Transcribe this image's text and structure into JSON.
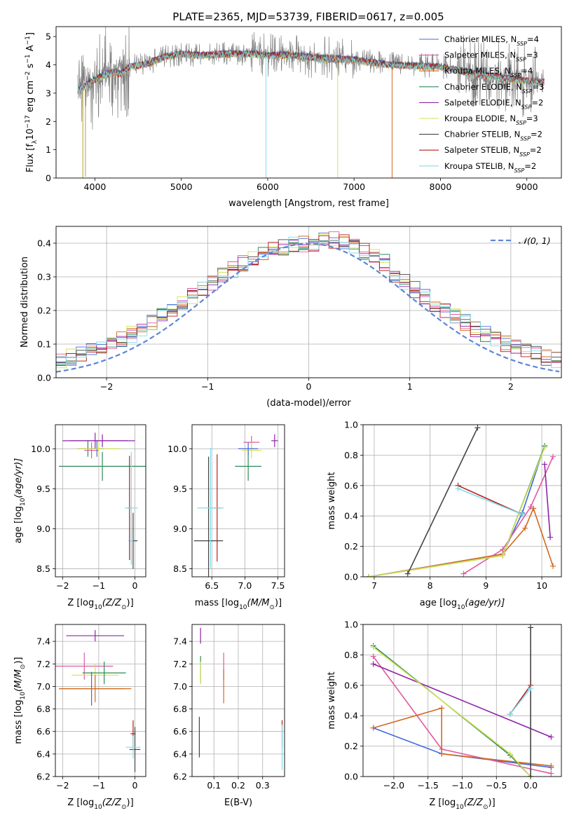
{
  "figure": {
    "title": "PLATE=2365, MJD=53739, FIBERID=0617, z=0.005"
  },
  "models": [
    {
      "name": "Chabrier MILES",
      "label_main": "Chabrier MILES, N",
      "nssp": 4,
      "color": "#4169e1"
    },
    {
      "name": "Salpeter MILES",
      "label_main": "Salpeter MILES, N",
      "nssp": 3,
      "color": "#e05aa0"
    },
    {
      "name": "Kroupa MILES",
      "label_main": "Kroupa MILES, N",
      "nssp": 4,
      "color": "#d2691e"
    },
    {
      "name": "Chabrier ELODIE",
      "label_main": "Chabrier ELODIE, N",
      "nssp": 3,
      "color": "#2e8b57"
    },
    {
      "name": "Salpeter ELODIE",
      "label_main": "Salpeter ELODIE, N",
      "nssp": 2,
      "color": "#8e24aa"
    },
    {
      "name": "Kroupa ELODIE",
      "label_main": "Kroupa ELODIE, N",
      "nssp": 3,
      "color": "#d4e157"
    },
    {
      "name": "Chabrier STELIB",
      "label_main": "Chabrier STELIB, N",
      "nssp": 2,
      "color": "#444444"
    },
    {
      "name": "Salpeter STELIB",
      "label_main": "Salpeter STELIB, N",
      "nssp": 2,
      "color": "#b71c1c"
    },
    {
      "name": "Kroupa STELIB",
      "label_main": "Kroupa STELIB, N",
      "nssp": 2,
      "color": "#80deea"
    }
  ],
  "legend_subscript": "SSP",
  "legend_eq": "=",
  "chart_data": [
    {
      "id": "spectrum",
      "type": "line",
      "xlabel": "wavelength [Angstrom, rest frame]",
      "ylabel": "Flux [f",
      "ylabel_sub": "λ",
      "ylabel_rest": "10",
      "ylabel_exp1": "−17",
      "ylabel_mid": " erg cm",
      "ylabel_exp2": "−2",
      "ylabel_s": " s",
      "ylabel_exp3": "−1",
      "ylabel_end": " A",
      "ylabel_exp4": "−1",
      "ylabel_close": "]",
      "xlim": [
        3550,
        9400
      ],
      "ylim": [
        0,
        5.35
      ],
      "xticks": [
        4000,
        5000,
        6000,
        7000,
        8000,
        9000
      ],
      "yticks": [
        0,
        1,
        2,
        3,
        4,
        5
      ],
      "data_color": "#808080",
      "continuum": [
        {
          "x": 3800,
          "y": 3.1
        },
        {
          "x": 3900,
          "y": 3.3
        },
        {
          "x": 4000,
          "y": 3.5
        },
        {
          "x": 4100,
          "y": 3.65
        },
        {
          "x": 4200,
          "y": 3.75
        },
        {
          "x": 4300,
          "y": 3.7
        },
        {
          "x": 4400,
          "y": 3.95
        },
        {
          "x": 4600,
          "y": 4.05
        },
        {
          "x": 4800,
          "y": 4.3
        },
        {
          "x": 5000,
          "y": 4.4
        },
        {
          "x": 5200,
          "y": 4.35
        },
        {
          "x": 5500,
          "y": 4.4
        },
        {
          "x": 5800,
          "y": 4.4
        },
        {
          "x": 6000,
          "y": 4.35
        },
        {
          "x": 6300,
          "y": 4.35
        },
        {
          "x": 6600,
          "y": 4.25
        },
        {
          "x": 7000,
          "y": 4.2
        },
        {
          "x": 7200,
          "y": 4.1
        },
        {
          "x": 7500,
          "y": 4.0
        },
        {
          "x": 8000,
          "y": 3.95
        },
        {
          "x": 8500,
          "y": 3.65
        },
        {
          "x": 9000,
          "y": 3.45
        },
        {
          "x": 9200,
          "y": 3.4
        }
      ],
      "deep_lines": [
        {
          "x": 3860,
          "y": 0.0
        },
        {
          "x": 3890,
          "y": 0.05
        },
        {
          "x": 5980,
          "y": 0.0
        },
        {
          "x": 6810,
          "y": 0.0
        },
        {
          "x": 7440,
          "y": 0.0
        }
      ]
    },
    {
      "id": "residuals",
      "type": "line",
      "xlabel": "(data-model)/error",
      "ylabel": "Normed distribution",
      "xlim": [
        -2.5,
        2.5
      ],
      "ylim": [
        0,
        0.45
      ],
      "xticks": [
        -2,
        -1,
        0,
        1,
        2
      ],
      "yticks": [
        0.0,
        0.1,
        0.2,
        0.3,
        0.4
      ],
      "gauss_label": "𝒩(0, 1)",
      "gauss_color": "#5c85d6",
      "bin_width": 0.1
    },
    {
      "id": "age_vs_Z",
      "type": "scatter",
      "xlabel": "Z [log",
      "xlabel_sub": "10",
      "xlabel_rest": "(Z/Z",
      "xlabel_sun": "⊙",
      "xlabel_end": ")]",
      "ylabel": "age  [log",
      "ylabel_sub": "10",
      "ylabel_rest": "(age/yr)]",
      "xlim": [
        -2.2,
        0.3
      ],
      "ylim": [
        8.4,
        10.3
      ],
      "xticks": [
        -2,
        -1,
        0
      ],
      "yticks": [
        8.5,
        9.0,
        9.5,
        10.0
      ],
      "points": [
        {
          "m": 4,
          "x": -1.1,
          "y": 10.1,
          "xe": 0.9,
          "ye": 0.1
        },
        {
          "m": 3,
          "x": -0.9,
          "y": 9.78,
          "xe": 1.2,
          "ye": 0.18
        },
        {
          "m": 3,
          "x": -1.3,
          "y": 10.0,
          "xe": 0.3,
          "ye": 0.1
        },
        {
          "m": 1,
          "x": -1.2,
          "y": 9.98,
          "xe": 0.2,
          "ye": 0.1
        },
        {
          "m": 0,
          "x": -1.05,
          "y": 10.0,
          "xe": 0.2,
          "ye": 0.1
        },
        {
          "m": 4,
          "x": -0.9,
          "y": 10.1,
          "xe": 0.9,
          "ye": 0.08
        },
        {
          "m": 5,
          "x": -1.0,
          "y": 10.0,
          "xe": 0.6,
          "ye": 0.08
        },
        {
          "m": 7,
          "x": -0.15,
          "y": 9.26,
          "xe": 0.05,
          "ye": 0.65
        },
        {
          "m": 6,
          "x": -0.05,
          "y": 8.85,
          "xe": 0.12,
          "ye": 0.35
        },
        {
          "m": 8,
          "x": -0.1,
          "y": 9.26,
          "xe": 0.18,
          "ye": 0.7
        },
        {
          "m": 8,
          "x": -0.1,
          "y": 8.85,
          "xe": 0.05,
          "ye": 0.3
        }
      ]
    },
    {
      "id": "age_vs_mass",
      "type": "scatter",
      "xlabel": "mass [log",
      "xlabel_sub": "10",
      "xlabel_rest": "(M/M",
      "xlabel_sun": "⊙",
      "xlabel_end": ")]",
      "xlim": [
        6.2,
        7.6
      ],
      "ylim": [
        8.4,
        10.3
      ],
      "xticks": [
        6.5,
        7.0,
        7.5
      ],
      "yticks": [
        8.5,
        9.0,
        9.5,
        10.0
      ],
      "points": [
        {
          "m": 4,
          "x": 7.45,
          "y": 10.1,
          "xe": 0.05,
          "ye": 0.08
        },
        {
          "m": 1,
          "x": 7.1,
          "y": 10.08,
          "xe": 0.12,
          "ye": 0.08
        },
        {
          "m": 3,
          "x": 7.05,
          "y": 9.78,
          "xe": 0.2,
          "ye": 0.18
        },
        {
          "m": 5,
          "x": 7.1,
          "y": 9.98,
          "xe": 0.15,
          "ye": 0.1
        },
        {
          "m": 0,
          "x": 7.05,
          "y": 10.0,
          "xe": 0.15,
          "ye": 0.08
        },
        {
          "m": 7,
          "x": 6.58,
          "y": 9.26,
          "xe": 0.05,
          "ye": 0.67
        },
        {
          "m": 6,
          "x": 6.45,
          "y": 8.85,
          "xe": 0.22,
          "ye": 1.05
        },
        {
          "m": 8,
          "x": 6.48,
          "y": 9.26,
          "xe": 0.2,
          "ye": 0.75
        }
      ]
    },
    {
      "id": "weight_vs_age",
      "type": "line",
      "xlabel": "age  [log",
      "xlabel_sub": "10",
      "xlabel_rest": "(age/yr)]",
      "ylabel": "mass weight",
      "xlim": [
        6.8,
        10.35
      ],
      "ylim": [
        0,
        1
      ],
      "xticks": [
        7,
        8,
        9,
        10
      ],
      "yticks": [
        0.0,
        0.2,
        0.4,
        0.6,
        0.8,
        1.0
      ],
      "series": [
        {
          "m": 0,
          "x": [
            6.9,
            9.3,
            9.65,
            10.05
          ],
          "y": [
            0.0,
            0.15,
            0.42,
            0.86
          ]
        },
        {
          "m": 1,
          "x": [
            8.6,
            9.3,
            9.8,
            10.2
          ],
          "y": [
            0.02,
            0.18,
            0.46,
            0.79
          ]
        },
        {
          "m": 2,
          "x": [
            6.9,
            9.3,
            9.7,
            9.85,
            10.2
          ],
          "y": [
            0.0,
            0.15,
            0.32,
            0.45,
            0.07
          ]
        },
        {
          "m": 3,
          "x": [
            6.9,
            9.3,
            10.05
          ],
          "y": [
            0.0,
            0.14,
            0.86
          ]
        },
        {
          "m": 4,
          "x": [
            10.05,
            10.15
          ],
          "y": [
            0.74,
            0.26
          ]
        },
        {
          "m": 5,
          "x": [
            6.9,
            9.3,
            10.05
          ],
          "y": [
            0.0,
            0.14,
            0.85
          ]
        },
        {
          "m": 6,
          "x": [
            7.6,
            8.85
          ],
          "y": [
            0.02,
            0.98
          ]
        },
        {
          "m": 7,
          "x": [
            8.5,
            9.65
          ],
          "y": [
            0.6,
            0.41
          ]
        },
        {
          "m": 8,
          "x": [
            8.5,
            9.65
          ],
          "y": [
            0.58,
            0.41
          ]
        }
      ]
    },
    {
      "id": "mass_vs_Z",
      "type": "scatter",
      "xlabel": "Z [log",
      "xlabel_sub": "10",
      "xlabel_rest": "(Z/Z",
      "xlabel_sun": "⊙",
      "xlabel_end": ")]",
      "ylabel": "mass [log",
      "ylabel_sub": "10",
      "ylabel_rest": "(M/M",
      "ylabel_sun": "⊙",
      "ylabel_end": ")]",
      "xlim": [
        -2.2,
        0.3
      ],
      "ylim": [
        6.2,
        7.55
      ],
      "xticks": [
        -2,
        -1,
        0
      ],
      "yticks": [
        6.2,
        6.4,
        6.6,
        6.8,
        7.0,
        7.2,
        7.4
      ],
      "points": [
        {
          "m": 4,
          "x": -1.1,
          "y": 7.45,
          "xe": 0.8,
          "ye": 0.05
        },
        {
          "m": 1,
          "x": -1.4,
          "y": 7.18,
          "xe": 0.8,
          "ye": 0.12
        },
        {
          "m": 5,
          "x": -1.1,
          "y": 7.1,
          "xe": 0.65,
          "ye": 0.1
        },
        {
          "m": 3,
          "x": -0.85,
          "y": 7.12,
          "xe": 0.6,
          "ye": 0.1
        },
        {
          "m": 0,
          "x": -1.2,
          "y": 6.98,
          "xe": 0.9,
          "ye": 0.15
        },
        {
          "m": 2,
          "x": -1.1,
          "y": 6.98,
          "xe": 1.0,
          "ye": 0.12
        },
        {
          "m": 7,
          "x": -0.05,
          "y": 6.58,
          "xe": 0.07,
          "ye": 0.12
        },
        {
          "m": 6,
          "x": 0.0,
          "y": 6.44,
          "xe": 0.15,
          "ye": 0.2
        },
        {
          "m": 8,
          "x": -0.05,
          "y": 6.46,
          "xe": 0.2,
          "ye": 0.1
        }
      ]
    },
    {
      "id": "mass_vs_ebv",
      "type": "scatter",
      "xlabel": "E(B-V)",
      "xlim": [
        0.01,
        0.39
      ],
      "ylim": [
        6.2,
        7.55
      ],
      "xticks": [
        0.1,
        0.2,
        0.3
      ],
      "yticks": [
        6.2,
        6.4,
        6.6,
        6.8,
        7.0,
        7.2,
        7.4
      ],
      "points": [
        {
          "m": 4,
          "x": 0.045,
          "y": 7.45,
          "xe": 0,
          "ye": 0.07
        },
        {
          "m": 3,
          "x": 0.045,
          "y": 7.15,
          "xe": 0,
          "ye": 0.12
        },
        {
          "m": 5,
          "x": 0.045,
          "y": 7.12,
          "xe": 0,
          "ye": 0.1
        },
        {
          "m": 1,
          "x": 0.14,
          "y": 7.18,
          "xe": 0,
          "ye": 0.12
        },
        {
          "m": 2,
          "x": 0.14,
          "y": 7.0,
          "xe": 0,
          "ye": 0.15
        },
        {
          "m": 6,
          "x": 0.04,
          "y": 6.55,
          "xe": 0,
          "ye": 0.18
        },
        {
          "m": 7,
          "x": 0.38,
          "y": 6.58,
          "xe": 0,
          "ye": 0.12
        },
        {
          "m": 8,
          "x": 0.38,
          "y": 6.46,
          "xe": 0,
          "ye": 0.2
        }
      ]
    },
    {
      "id": "weight_vs_Z",
      "type": "line",
      "xlabel": "Z [log",
      "xlabel_sub": "10",
      "xlabel_rest": "(Z/Z",
      "xlabel_sun": "⊙",
      "xlabel_end": ")]",
      "ylabel": "mass weight",
      "xlim": [
        -2.45,
        0.45
      ],
      "ylim": [
        0,
        1
      ],
      "xticks": [
        -2.0,
        -1.5,
        -1.0,
        -0.5,
        0.0
      ],
      "yticks": [
        0.0,
        0.2,
        0.4,
        0.6,
        0.8,
        1.0
      ],
      "series": [
        {
          "m": 0,
          "x": [
            -2.3,
            -1.3,
            0.3
          ],
          "y": [
            0.32,
            0.15,
            0.06
          ]
        },
        {
          "m": 1,
          "x": [
            -2.3,
            -1.3,
            0.3
          ],
          "y": [
            0.79,
            0.18,
            0.02
          ]
        },
        {
          "m": 2,
          "x": [
            -2.3,
            -1.3,
            -1.3,
            0.3
          ],
          "y": [
            0.32,
            0.45,
            0.15,
            0.07
          ]
        },
        {
          "m": 3,
          "x": [
            -2.3,
            -0.3,
            0.0
          ],
          "y": [
            0.86,
            0.14,
            0.0
          ]
        },
        {
          "m": 4,
          "x": [
            -2.3,
            0.3
          ],
          "y": [
            0.74,
            0.26
          ]
        },
        {
          "m": 5,
          "x": [
            -2.3,
            -0.3,
            0.0
          ],
          "y": [
            0.85,
            0.15,
            0.0
          ]
        },
        {
          "m": 6,
          "x": [
            0.0,
            0.0
          ],
          "y": [
            0.0,
            0.98
          ]
        },
        {
          "m": 7,
          "x": [
            -0.3,
            0.0
          ],
          "y": [
            0.41,
            0.6
          ]
        },
        {
          "m": 8,
          "x": [
            -0.3,
            0.0
          ],
          "y": [
            0.41,
            0.58
          ]
        }
      ]
    }
  ]
}
